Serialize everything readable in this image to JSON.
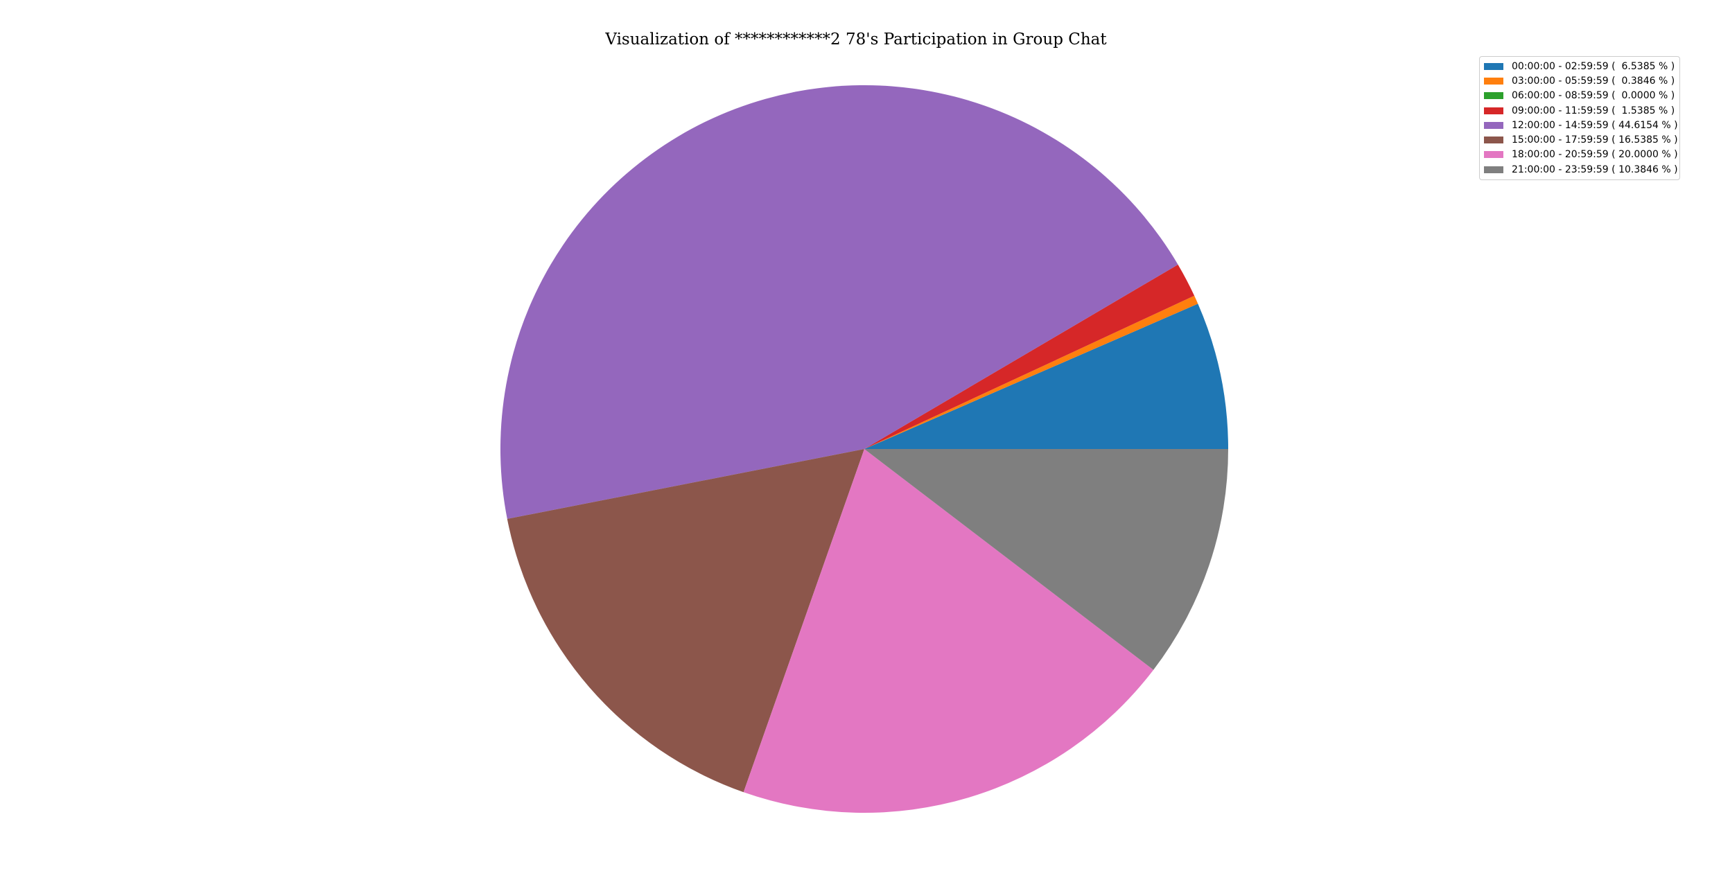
{
  "chart_data": {
    "type": "pie",
    "title": "Visualization of ************2 78's Participation in Group Chat",
    "legend_position": "top-right",
    "start_angle_deg": 0,
    "direction": "counterclockwise",
    "slices": [
      {
        "label": "00:00:00 - 02:59:59",
        "value": 6.5385,
        "legend_text": "00:00:00 - 02:59:59 (  6.5385 % )",
        "color": "#1f77b4"
      },
      {
        "label": "03:00:00 - 05:59:59",
        "value": 0.3846,
        "legend_text": "03:00:00 - 05:59:59 (  0.3846 % )",
        "color": "#ff7f0e"
      },
      {
        "label": "06:00:00 - 08:59:59",
        "value": 0.0,
        "legend_text": "06:00:00 - 08:59:59 (  0.0000 % )",
        "color": "#2ca02c"
      },
      {
        "label": "09:00:00 - 11:59:59",
        "value": 1.5385,
        "legend_text": "09:00:00 - 11:59:59 (  1.5385 % )",
        "color": "#d62728"
      },
      {
        "label": "12:00:00 - 14:59:59",
        "value": 44.6154,
        "legend_text": "12:00:00 - 14:59:59 ( 44.6154 % )",
        "color": "#9467bd"
      },
      {
        "label": "15:00:00 - 17:59:59",
        "value": 16.5385,
        "legend_text": "15:00:00 - 17:59:59 ( 16.5385 % )",
        "color": "#8c564b"
      },
      {
        "label": "18:00:00 - 20:59:59",
        "value": 20.0,
        "legend_text": "18:00:00 - 20:59:59 ( 20.0000 % )",
        "color": "#e377c2"
      },
      {
        "label": "21:00:00 - 23:59:59",
        "value": 10.3846,
        "legend_text": "21:00:00 - 23:59:59 ( 10.3846 % )",
        "color": "#7f7f7f"
      }
    ]
  }
}
